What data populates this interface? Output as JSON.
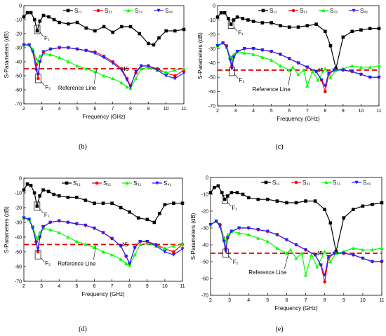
{
  "figure": {
    "panel_labels": [
      "(b)",
      "(c)",
      "(d)",
      "(e)"
    ],
    "colors": {
      "S11": "#000000",
      "S21": "#ff0000",
      "S31": "#00ff00",
      "S41": "#2020ff",
      "reference": "#e00000"
    }
  },
  "chart_data": [
    {
      "panel": "(b)",
      "type": "line",
      "xlabel": "Frequency (GHz)",
      "ylabel": "S-Parameters (dB)",
      "xlim": [
        2,
        11
      ],
      "ylim": [
        -70,
        0
      ],
      "xticks": [
        2,
        3,
        4,
        5,
        6,
        7,
        8,
        9,
        10,
        11
      ],
      "yticks": [
        0,
        -10,
        -20,
        -30,
        -40,
        -50,
        -60,
        -70
      ],
      "grid": false,
      "legend": "top-right",
      "reference_line": {
        "y": -45,
        "label": "-45",
        "text": "Reference Line"
      },
      "annotations": [
        {
          "text": "F₁",
          "x": 2.75,
          "y": -17
        },
        {
          "text": "F₂",
          "x": 2.8,
          "y": -52
        }
      ],
      "series": [
        {
          "name": "S₁₁",
          "x": [
            2,
            2.2,
            2.4,
            2.6,
            2.75,
            2.9,
            3.1,
            3.4,
            3.7,
            4,
            4.5,
            5,
            5.5,
            6,
            6.5,
            7,
            7.5,
            8,
            8.5,
            9,
            9.3,
            9.6,
            10,
            10.5,
            11
          ],
          "y": [
            -8,
            -5,
            -5,
            -10,
            -18,
            -11,
            -7,
            -8,
            -10,
            -12,
            -13,
            -12,
            -16,
            -18,
            -15,
            -19,
            -15,
            -15,
            -20,
            -27,
            -28,
            -23,
            -18,
            -18,
            -17
          ]
        },
        {
          "name": "S₂₁",
          "x": [
            2,
            2.3,
            2.5,
            2.7,
            2.8,
            2.9,
            3.1,
            3.5,
            4,
            4.5,
            5,
            5.5,
            6,
            6.5,
            7,
            7.5,
            7.8,
            8,
            8.3,
            8.6,
            9,
            9.5,
            10,
            10.5,
            11
          ],
          "y": [
            -28,
            -28,
            -32,
            -42,
            -52,
            -40,
            -33,
            -31,
            -30,
            -30,
            -31,
            -32,
            -33,
            -36,
            -40,
            -45,
            -52,
            -57,
            -48,
            -43,
            -43,
            -45,
            -48,
            -50,
            -46
          ]
        },
        {
          "name": "S₃₁",
          "x": [
            2,
            2.3,
            2.5,
            2.7,
            2.8,
            2.9,
            3.1,
            3.5,
            4,
            4.5,
            5,
            5.5,
            6,
            6.5,
            7,
            7.5,
            7.8,
            8,
            8.3,
            8.6,
            9,
            9.5,
            10,
            10.5,
            11
          ],
          "y": [
            -28,
            -28,
            -31,
            -38,
            -40,
            -36,
            -34,
            -35,
            -37,
            -40,
            -43,
            -45,
            -47,
            -50,
            -52,
            -55,
            -58,
            -59,
            -52,
            -45,
            -44,
            -46,
            -48,
            -46,
            -45
          ]
        },
        {
          "name": "S₄₁",
          "x": [
            2,
            2.3,
            2.5,
            2.7,
            2.8,
            2.9,
            3.1,
            3.5,
            4,
            4.5,
            5,
            5.5,
            6,
            6.5,
            7,
            7.5,
            7.8,
            8,
            8.3,
            8.6,
            9,
            9.5,
            10,
            10.5,
            11
          ],
          "y": [
            -28,
            -28,
            -33,
            -46,
            -49,
            -40,
            -33,
            -31,
            -30,
            -30,
            -31,
            -32,
            -34,
            -37,
            -41,
            -46,
            -53,
            -58,
            -47,
            -43,
            -43,
            -46,
            -50,
            -52,
            -48
          ]
        }
      ]
    },
    {
      "panel": "(c)",
      "type": "line",
      "xlabel": "Frequency (GHz)",
      "ylabel": "S-Parameters (dB)",
      "xlim": [
        2,
        11
      ],
      "ylim": [
        -70,
        0
      ],
      "xticks": [
        2,
        3,
        4,
        5,
        6,
        7,
        8,
        9,
        10,
        11
      ],
      "yticks": [
        0,
        -10,
        -20,
        -30,
        -40,
        -50,
        -60,
        -70
      ],
      "grid": false,
      "legend": "top-right",
      "reference_line": {
        "y": -45,
        "label": "-45",
        "text": "Reference Line"
      },
      "annotations": [
        {
          "text": "F₁",
          "x": 2.75,
          "y": -13
        },
        {
          "text": "F₂",
          "x": 2.8,
          "y": -46
        }
      ],
      "series": [
        {
          "name": "S₁₁",
          "x": [
            2,
            2.2,
            2.4,
            2.6,
            2.75,
            2.9,
            3.1,
            3.4,
            3.7,
            4,
            4.5,
            5,
            5.5,
            6,
            6.5,
            7,
            7.5,
            8,
            8.3,
            8.6,
            9,
            9.5,
            10,
            10.5,
            11
          ],
          "y": [
            -8,
            -5,
            -5,
            -9,
            -13,
            -10,
            -8,
            -9,
            -10,
            -11,
            -12,
            -12,
            -14,
            -15,
            -15,
            -14,
            -13,
            -18,
            -28,
            -44,
            -22,
            -18,
            -17,
            -16,
            -16
          ]
        },
        {
          "name": "S₂₁",
          "x": [
            2,
            2.3,
            2.5,
            2.7,
            2.8,
            2.9,
            3.1,
            3.5,
            4,
            4.5,
            5,
            5.5,
            6,
            6.5,
            7,
            7.5,
            7.8,
            8,
            8.2,
            8.5,
            9,
            9.5,
            10,
            10.5,
            11
          ],
          "y": [
            -28,
            -26,
            -28,
            -36,
            -42,
            -36,
            -32,
            -30,
            -30,
            -31,
            -32,
            -34,
            -37,
            -40,
            -43,
            -46,
            -52,
            -60,
            -48,
            -45,
            -45,
            -46,
            -48,
            -50,
            -50
          ]
        },
        {
          "name": "S₃₁",
          "x": [
            2,
            2.3,
            2.5,
            2.7,
            2.8,
            2.9,
            3.1,
            3.5,
            4,
            4.5,
            5,
            5.5,
            6,
            6.2,
            6.5,
            6.8,
            7,
            7.3,
            7.6,
            8,
            8.3,
            8.6,
            9,
            9.5,
            10,
            10.5,
            11
          ],
          "y": [
            -28,
            -26,
            -29,
            -36,
            -38,
            -34,
            -32,
            -33,
            -34,
            -36,
            -38,
            -42,
            -45,
            -43,
            -48,
            -45,
            -56,
            -46,
            -52,
            -44,
            -50,
            -45,
            -44,
            -42,
            -43,
            -43,
            -42
          ]
        },
        {
          "name": "S₄₁",
          "x": [
            2,
            2.3,
            2.5,
            2.7,
            2.8,
            2.9,
            3.1,
            3.5,
            4,
            4.5,
            5,
            5.5,
            6,
            6.5,
            7,
            7.5,
            7.8,
            8,
            8.2,
            8.5,
            9,
            9.5,
            10,
            10.5,
            11
          ],
          "y": [
            -28,
            -26,
            -29,
            -38,
            -44,
            -36,
            -32,
            -30,
            -30,
            -31,
            -32,
            -34,
            -37,
            -40,
            -43,
            -46,
            -52,
            -56,
            -47,
            -45,
            -45,
            -46,
            -48,
            -50,
            -50
          ]
        }
      ]
    },
    {
      "panel": "(d)",
      "type": "line",
      "xlabel": "Frequency (GHz)",
      "ylabel": "S-Parameters (dB)",
      "xlim": [
        2,
        11
      ],
      "ylim": [
        -70,
        0
      ],
      "xticks": [
        2,
        3,
        4,
        5,
        6,
        7,
        8,
        9,
        10,
        11
      ],
      "yticks": [
        0,
        -10,
        -20,
        -30,
        -40,
        -50,
        -60,
        -70
      ],
      "grid": false,
      "legend": "top-right",
      "reference_line": {
        "y": -45,
        "label": "-45",
        "text": "Reference Line"
      },
      "annotations": [
        {
          "text": "F₁",
          "x": 2.75,
          "y": -19
        },
        {
          "text": "F₂",
          "x": 2.8,
          "y": -52
        }
      ],
      "series": [
        {
          "name": "S₁₁",
          "x": [
            2,
            2.2,
            2.4,
            2.6,
            2.75,
            2.9,
            3.1,
            3.4,
            3.7,
            4,
            4.5,
            5,
            5.5,
            6,
            6.5,
            7,
            7.5,
            8,
            8.5,
            9,
            9.4,
            9.7,
            10,
            10.5,
            11
          ],
          "y": [
            -8,
            -4,
            -5,
            -10,
            -19,
            -12,
            -8,
            -9,
            -11,
            -12,
            -13,
            -13,
            -15,
            -17,
            -17,
            -17,
            -20,
            -23,
            -27,
            -28,
            -30,
            -24,
            -18,
            -17,
            -17
          ]
        },
        {
          "name": "S₂₁",
          "x": [
            2,
            2.3,
            2.5,
            2.7,
            2.8,
            2.9,
            3.1,
            3.5,
            4,
            4.5,
            5,
            5.5,
            6,
            6.5,
            7,
            7.5,
            7.8,
            8,
            8.3,
            8.6,
            9,
            9.5,
            10,
            10.5,
            11
          ],
          "y": [
            -27,
            -28,
            -33,
            -43,
            -50,
            -40,
            -33,
            -30,
            -29,
            -30,
            -31,
            -32,
            -34,
            -37,
            -41,
            -46,
            -53,
            -58,
            -47,
            -43,
            -43,
            -45,
            -48,
            -50,
            -45
          ]
        },
        {
          "name": "S₃₁",
          "x": [
            2,
            2.3,
            2.5,
            2.7,
            2.8,
            2.9,
            3.1,
            3.5,
            4,
            4.5,
            5,
            5.5,
            6,
            6.5,
            7,
            7.5,
            7.8,
            8,
            8.3,
            8.6,
            9,
            9.5,
            10,
            10.5,
            11
          ],
          "y": [
            -27,
            -28,
            -33,
            -40,
            -41,
            -37,
            -34,
            -35,
            -37,
            -40,
            -43,
            -45,
            -47,
            -50,
            -52,
            -55,
            -58,
            -59,
            -52,
            -45,
            -44,
            -46,
            -48,
            -46,
            -45
          ]
        },
        {
          "name": "S₄₁",
          "x": [
            2,
            2.3,
            2.5,
            2.7,
            2.8,
            2.9,
            3.1,
            3.5,
            4,
            4.5,
            5,
            5.5,
            6,
            6.5,
            7,
            7.5,
            7.8,
            8,
            8.3,
            8.6,
            9,
            9.5,
            10,
            10.5,
            11
          ],
          "y": [
            -27,
            -28,
            -34,
            -44,
            -48,
            -40,
            -33,
            -30,
            -29,
            -30,
            -31,
            -32,
            -34,
            -37,
            -41,
            -46,
            -53,
            -58,
            -47,
            -43,
            -43,
            -46,
            -50,
            -52,
            -48
          ]
        }
      ]
    },
    {
      "panel": "(e)",
      "type": "line",
      "xlabel": "Frequency (GHz)",
      "ylabel": "S-Parameters (dB)",
      "xlim": [
        2,
        11
      ],
      "ylim": [
        -70,
        0
      ],
      "xticks": [
        2,
        3,
        4,
        5,
        6,
        7,
        8,
        9,
        10,
        11
      ],
      "yticks": [
        0,
        -10,
        -20,
        -30,
        -40,
        -50,
        -60,
        -70
      ],
      "grid": false,
      "legend": "top-right",
      "reference_line": {
        "y": -45,
        "label": "-45",
        "text": "Reference Line"
      },
      "annotations": [
        {
          "text": "F₁",
          "x": 2.75,
          "y": -13
        },
        {
          "text": "F₂",
          "x": 2.8,
          "y": -45
        }
      ],
      "series": [
        {
          "name": "S₁₁",
          "x": [
            2,
            2.2,
            2.4,
            2.6,
            2.75,
            2.9,
            3.1,
            3.4,
            3.7,
            4,
            4.5,
            5,
            5.5,
            6,
            6.5,
            7,
            7.5,
            8,
            8.3,
            8.6,
            9,
            9.5,
            10,
            10.5,
            11
          ],
          "y": [
            -9,
            -6,
            -5,
            -9,
            -13,
            -11,
            -9,
            -9,
            -10,
            -12,
            -13,
            -13,
            -14,
            -15,
            -15,
            -14,
            -14,
            -19,
            -27,
            -44,
            -24,
            -19,
            -17,
            -16,
            -15
          ]
        },
        {
          "name": "S₂₁",
          "x": [
            2,
            2.3,
            2.5,
            2.7,
            2.8,
            2.9,
            3.1,
            3.5,
            4,
            4.5,
            5,
            5.5,
            6,
            6.5,
            7,
            7.5,
            7.8,
            8,
            8.2,
            8.5,
            9,
            9.5,
            10,
            10.5,
            11
          ],
          "y": [
            -28,
            -26,
            -28,
            -36,
            -42,
            -36,
            -32,
            -30,
            -30,
            -31,
            -32,
            -34,
            -37,
            -40,
            -43,
            -46,
            -52,
            -62,
            -48,
            -45,
            -45,
            -46,
            -48,
            -50,
            -50
          ]
        },
        {
          "name": "S₃₁",
          "x": [
            2,
            2.3,
            2.5,
            2.7,
            2.8,
            2.9,
            3.1,
            3.5,
            4,
            4.5,
            5,
            5.5,
            6,
            6.2,
            6.5,
            6.8,
            7,
            7.3,
            7.6,
            8,
            8.3,
            8.6,
            9,
            9.5,
            10,
            10.5,
            11
          ],
          "y": [
            -28,
            -26,
            -29,
            -36,
            -38,
            -34,
            -32,
            -33,
            -34,
            -36,
            -38,
            -42,
            -45,
            -43,
            -48,
            -45,
            -58,
            -46,
            -53,
            -44,
            -50,
            -45,
            -44,
            -42,
            -43,
            -43,
            -42
          ]
        },
        {
          "name": "S₄₁",
          "x": [
            2,
            2.3,
            2.5,
            2.7,
            2.8,
            2.9,
            3.1,
            3.5,
            4,
            4.5,
            5,
            5.5,
            6,
            6.5,
            7,
            7.5,
            7.8,
            8,
            8.2,
            8.5,
            9,
            9.5,
            10,
            10.5,
            11
          ],
          "y": [
            -28,
            -26,
            -29,
            -38,
            -44,
            -36,
            -32,
            -30,
            -30,
            -31,
            -32,
            -34,
            -37,
            -40,
            -43,
            -46,
            -52,
            -58,
            -47,
            -45,
            -45,
            -46,
            -48,
            -50,
            -50
          ]
        }
      ]
    }
  ]
}
